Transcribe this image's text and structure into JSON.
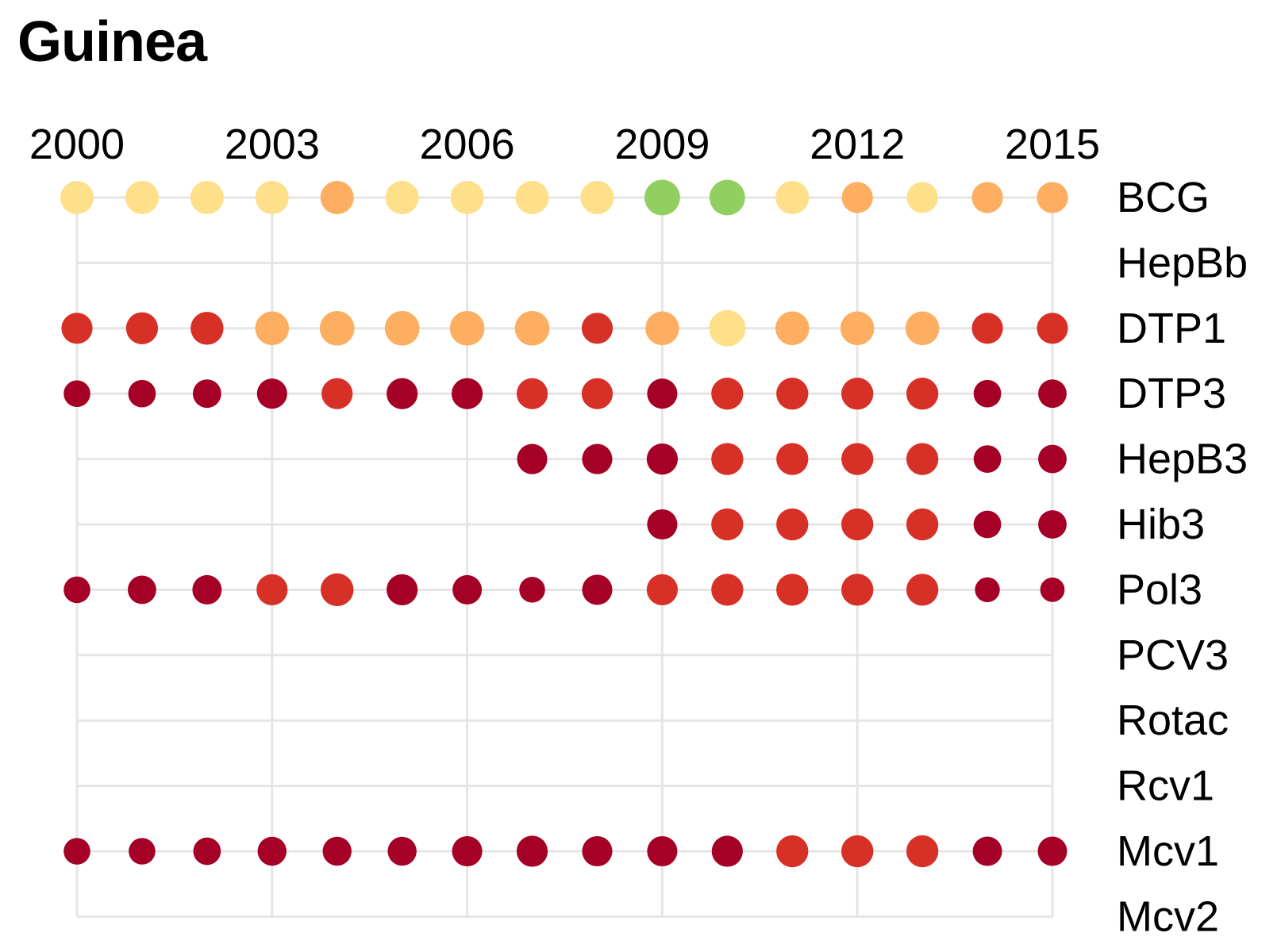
{
  "chart_data": {
    "type": "scatter",
    "title": "Guinea",
    "x_tick_labels": [
      "2000",
      "2003",
      "2006",
      "2009",
      "2012",
      "2015"
    ],
    "x_range": [
      2000,
      2015
    ],
    "rows": [
      "BCG",
      "HepBb",
      "DTP1",
      "DTP3",
      "HepB3",
      "Hib3",
      "Pol3",
      "PCV3",
      "Rotac",
      "Rcv1",
      "Mcv1",
      "Mcv2"
    ],
    "colors": {
      "green": "#91cf60",
      "light_yellow": "#fee08b",
      "orange": "#fdae61",
      "red": "#d73027",
      "dark_red": "#a50026",
      "grid": "#e5e5e5"
    },
    "series": [
      {
        "row": "BCG",
        "years": [
          2000,
          2001,
          2002,
          2003,
          2004,
          2005,
          2006,
          2007,
          2008,
          2009,
          2010,
          2011,
          2012,
          2013,
          2014,
          2015
        ],
        "color_keys": [
          "light_yellow",
          "light_yellow",
          "light_yellow",
          "light_yellow",
          "orange",
          "light_yellow",
          "light_yellow",
          "light_yellow",
          "light_yellow",
          "green",
          "green",
          "light_yellow",
          "orange",
          "light_yellow",
          "orange",
          "orange"
        ],
        "size_levels": [
          0.75,
          0.75,
          0.75,
          0.75,
          0.75,
          0.75,
          0.75,
          0.75,
          0.75,
          0.8,
          0.8,
          0.75,
          0.7,
          0.7,
          0.7,
          0.7
        ]
      },
      {
        "row": "HepBb",
        "years": [],
        "color_keys": [],
        "size_levels": []
      },
      {
        "row": "DTP1",
        "years": [
          2000,
          2001,
          2002,
          2003,
          2004,
          2005,
          2006,
          2007,
          2008,
          2009,
          2010,
          2011,
          2012,
          2013,
          2014,
          2015
        ],
        "color_keys": [
          "red",
          "red",
          "red",
          "orange",
          "orange",
          "orange",
          "orange",
          "orange",
          "red",
          "orange",
          "light_yellow",
          "orange",
          "orange",
          "orange",
          "red",
          "red"
        ],
        "size_levels": [
          0.7,
          0.72,
          0.74,
          0.76,
          0.78,
          0.78,
          0.78,
          0.78,
          0.7,
          0.76,
          0.82,
          0.76,
          0.76,
          0.76,
          0.7,
          0.7
        ]
      },
      {
        "row": "DTP3",
        "years": [
          2000,
          2001,
          2002,
          2003,
          2004,
          2005,
          2006,
          2007,
          2008,
          2009,
          2010,
          2011,
          2012,
          2013,
          2014,
          2015
        ],
        "color_keys": [
          "dark_red",
          "dark_red",
          "dark_red",
          "dark_red",
          "red",
          "dark_red",
          "dark_red",
          "red",
          "red",
          "dark_red",
          "red",
          "red",
          "red",
          "red",
          "dark_red",
          "dark_red"
        ],
        "size_levels": [
          0.6,
          0.62,
          0.64,
          0.68,
          0.7,
          0.7,
          0.7,
          0.7,
          0.7,
          0.68,
          0.72,
          0.72,
          0.72,
          0.72,
          0.62,
          0.64
        ]
      },
      {
        "row": "HepB3",
        "years": [
          2007,
          2008,
          2009,
          2010,
          2011,
          2012,
          2013,
          2014,
          2015
        ],
        "color_keys": [
          "dark_red",
          "dark_red",
          "dark_red",
          "red",
          "red",
          "red",
          "red",
          "dark_red",
          "dark_red"
        ],
        "size_levels": [
          0.68,
          0.68,
          0.7,
          0.72,
          0.72,
          0.72,
          0.72,
          0.62,
          0.64
        ]
      },
      {
        "row": "Hib3",
        "years": [
          2009,
          2010,
          2011,
          2012,
          2013,
          2014,
          2015
        ],
        "color_keys": [
          "dark_red",
          "red",
          "red",
          "red",
          "red",
          "dark_red",
          "dark_red"
        ],
        "size_levels": [
          0.68,
          0.72,
          0.72,
          0.72,
          0.72,
          0.62,
          0.64
        ]
      },
      {
        "row": "Pol3",
        "years": [
          2000,
          2001,
          2002,
          2003,
          2004,
          2005,
          2006,
          2007,
          2008,
          2009,
          2010,
          2011,
          2012,
          2013,
          2014,
          2015
        ],
        "color_keys": [
          "dark_red",
          "dark_red",
          "dark_red",
          "red",
          "red",
          "dark_red",
          "dark_red",
          "dark_red",
          "dark_red",
          "red",
          "red",
          "red",
          "red",
          "red",
          "dark_red",
          "dark_red"
        ],
        "size_levels": [
          0.6,
          0.64,
          0.66,
          0.7,
          0.74,
          0.7,
          0.66,
          0.58,
          0.68,
          0.7,
          0.72,
          0.72,
          0.72,
          0.72,
          0.56,
          0.55
        ]
      },
      {
        "row": "PCV3",
        "years": [],
        "color_keys": [],
        "size_levels": []
      },
      {
        "row": "Rotac",
        "years": [],
        "color_keys": [],
        "size_levels": []
      },
      {
        "row": "Rcv1",
        "years": [],
        "color_keys": [],
        "size_levels": []
      },
      {
        "row": "Mcv1",
        "years": [
          2000,
          2001,
          2002,
          2003,
          2004,
          2005,
          2006,
          2007,
          2008,
          2009,
          2010,
          2011,
          2012,
          2013,
          2014,
          2015
        ],
        "color_keys": [
          "dark_red",
          "dark_red",
          "dark_red",
          "dark_red",
          "dark_red",
          "dark_red",
          "dark_red",
          "dark_red",
          "dark_red",
          "dark_red",
          "dark_red",
          "red",
          "red",
          "red",
          "dark_red",
          "dark_red"
        ],
        "size_levels": [
          0.6,
          0.6,
          0.62,
          0.65,
          0.65,
          0.65,
          0.68,
          0.7,
          0.68,
          0.68,
          0.7,
          0.72,
          0.72,
          0.72,
          0.66,
          0.66
        ]
      },
      {
        "row": "Mcv2",
        "years": [],
        "color_keys": [],
        "size_levels": []
      }
    ]
  }
}
